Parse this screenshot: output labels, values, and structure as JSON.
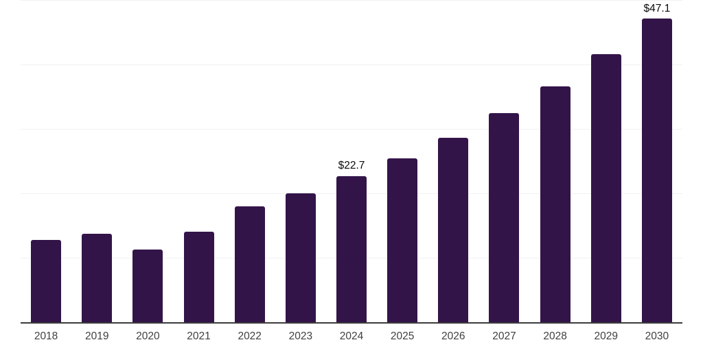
{
  "chart_data": {
    "type": "bar",
    "title": "",
    "xlabel": "",
    "ylabel": "",
    "categories": [
      "2018",
      "2019",
      "2020",
      "2021",
      "2022",
      "2023",
      "2024",
      "2025",
      "2026",
      "2027",
      "2028",
      "2029",
      "2030"
    ],
    "values": [
      12.8,
      13.7,
      11.3,
      14.0,
      18.0,
      20.0,
      22.7,
      25.4,
      28.6,
      32.5,
      36.6,
      41.6,
      47.1
    ],
    "data_labels": [
      "",
      "",
      "",
      "",
      "",
      "",
      "$22.7",
      "",
      "",
      "",
      "",
      "",
      "$47.1"
    ],
    "ylim": [
      0,
      50
    ],
    "y_gridlines": [
      10,
      20,
      30,
      40,
      50
    ],
    "grid": "horizontal-only",
    "legend": "none",
    "y_tick_labels_visible": false,
    "colors": {
      "bar": "#331449",
      "axis_line": "#3b3b3b",
      "gridline": "#f1f1f1",
      "tick_label": "#3f3f3f",
      "data_label": "#0a0a0a",
      "background": "#ffffff"
    }
  }
}
